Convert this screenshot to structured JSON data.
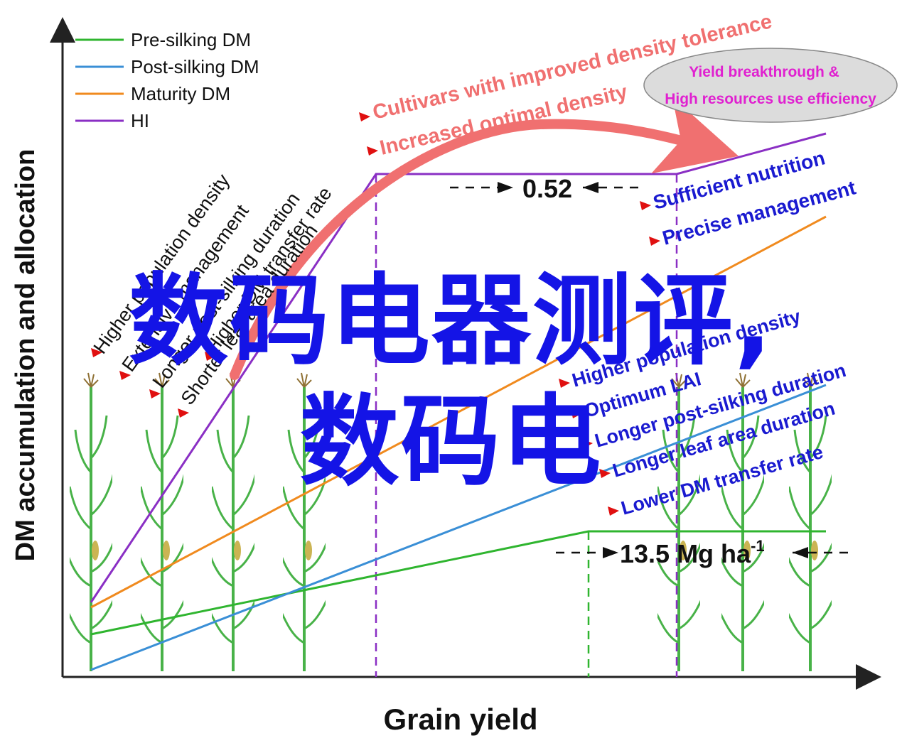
{
  "diagram": {
    "x_axis_label": "Grain yield",
    "y_axis_label": "DM accumulation and allocation",
    "legend": [
      {
        "label": "Pre-silking DM",
        "color": "#2fb52f"
      },
      {
        "label": "Post-silking DM",
        "color": "#3a8fd6"
      },
      {
        "label": "Maturity DM",
        "color": "#f08a1e"
      },
      {
        "label": "HI",
        "color": "#8a2fc4"
      }
    ],
    "bubble": {
      "line1": "Yield breakthrough &",
      "line2": "High resources use efficiency",
      "text_color": "#e020d0"
    },
    "red_curve_labels": [
      "Cultivars with improved density tolerance",
      "Increased optimal density"
    ],
    "left_labels": [
      "Higher population density",
      "Extensive management",
      "Longer post-silking duration",
      "Shorter leaf area duration",
      "Higher DM transfer rate"
    ],
    "right_top_labels": [
      "Sufficient nutrition",
      "Precise management"
    ],
    "right_labels": [
      "Higher population density",
      "Optimum LAI",
      "Longer post-silking duration",
      "Longer leaf area duration",
      "Lower DM transfer rate"
    ],
    "annotation_hi": "0.52",
    "annotation_dm": "13.5 Mg ha",
    "annotation_dm_sup": "-1",
    "colors": {
      "red": "#f07070",
      "arrow_red": "#e01010",
      "blue_text": "#1a1ad0",
      "axis": "#222222",
      "plant": "#3fae3f"
    }
  },
  "watermark": {
    "line1": "数码电器测评,",
    "line2": "数码电"
  }
}
